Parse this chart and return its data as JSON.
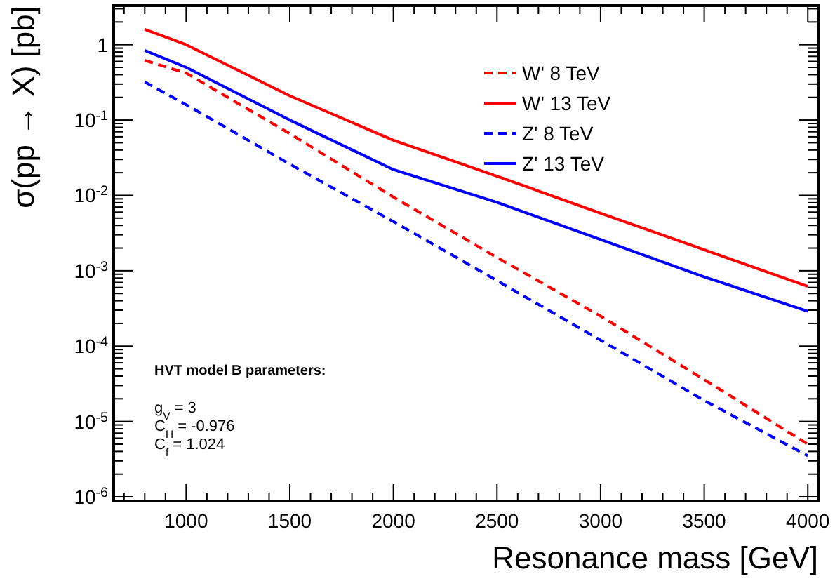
{
  "chart_data": {
    "type": "line",
    "xlabel": "Resonance mass [GeV]",
    "ylabel": "σ(pp → X) [pb]",
    "log": "y",
    "grid": false,
    "legend": "top right",
    "marker": "none",
    "xlim": [
      650,
      4050
    ],
    "ylim": [
      8.8e-07,
      3.3
    ],
    "xticks": [
      {
        "value": 700,
        "label": null
      },
      {
        "value": 800,
        "label": null
      },
      {
        "value": 900,
        "label": null
      },
      1000,
      {
        "value": 1100,
        "label": null
      },
      {
        "value": 1200,
        "label": null
      },
      {
        "value": 1300,
        "label": null
      },
      {
        "value": 1400,
        "label": null
      },
      1500,
      {
        "value": 1600,
        "label": null
      },
      {
        "value": 1700,
        "label": null
      },
      {
        "value": 1800,
        "label": null
      },
      {
        "value": 1900,
        "label": null
      },
      2000,
      {
        "value": 2100,
        "label": null
      },
      {
        "value": 2200,
        "label": null
      },
      {
        "value": 2300,
        "label": null
      },
      {
        "value": 2400,
        "label": null
      },
      2500,
      {
        "value": 2600,
        "label": null
      },
      {
        "value": 2700,
        "label": null
      },
      {
        "value": 2800,
        "label": null
      },
      {
        "value": 2900,
        "label": null
      },
      3000,
      {
        "value": 3100,
        "label": null
      },
      {
        "value": 3200,
        "label": null
      },
      {
        "value": 3300,
        "label": null
      },
      {
        "value": 3400,
        "label": null
      },
      3500,
      {
        "value": 3600,
        "label": null
      },
      {
        "value": 3700,
        "label": null
      },
      {
        "value": 3800,
        "label": null
      },
      {
        "value": 3900,
        "label": null
      },
      4000
    ],
    "yticks": [
      {
        "value": 1e-06,
        "label": "10$^{-6}$"
      },
      {
        "value": 2e-06,
        "label": null
      },
      {
        "value": 3e-06,
        "label": null
      },
      {
        "value": 4e-06,
        "label": null
      },
      {
        "value": 5e-06,
        "label": null
      },
      {
        "value": 6e-06,
        "label": null
      },
      {
        "value": 7e-06,
        "label": null
      },
      {
        "value": 8e-06,
        "label": null
      },
      {
        "value": 9e-06,
        "label": null
      },
      {
        "value": 1e-05,
        "label": "10$^{-5}$"
      },
      {
        "value": 2e-05,
        "label": null
      },
      {
        "value": 3e-05,
        "label": null
      },
      {
        "value": 4e-05,
        "label": null
      },
      {
        "value": 5e-05,
        "label": null
      },
      {
        "value": 6e-05,
        "label": null
      },
      {
        "value": 7e-05,
        "label": null
      },
      {
        "value": 8e-05,
        "label": null
      },
      {
        "value": 9e-05,
        "label": null
      },
      {
        "value": 0.0001,
        "label": "10$^{-4}$"
      },
      {
        "value": 0.0002,
        "label": null
      },
      {
        "value": 0.0003,
        "label": null
      },
      {
        "value": 0.0004,
        "label": null
      },
      {
        "value": 0.0005,
        "label": null
      },
      {
        "value": 0.0006,
        "label": null
      },
      {
        "value": 0.0007,
        "label": null
      },
      {
        "value": 0.0008,
        "label": null
      },
      {
        "value": 0.0009,
        "label": null
      },
      {
        "value": 0.001,
        "label": "10$^{-3}$"
      },
      {
        "value": 0.002,
        "label": null
      },
      {
        "value": 0.003,
        "label": null
      },
      {
        "value": 0.004,
        "label": null
      },
      {
        "value": 0.005,
        "label": null
      },
      {
        "value": 0.006,
        "label": null
      },
      {
        "value": 0.007,
        "label": null
      },
      {
        "value": 0.008,
        "label": null
      },
      {
        "value": 0.009,
        "label": null
      },
      {
        "value": 0.01,
        "label": "10$^{-2}$"
      },
      {
        "value": 0.02,
        "label": null
      },
      {
        "value": 0.03,
        "label": null
      },
      {
        "value": 0.04,
        "label": null
      },
      {
        "value": 0.05,
        "label": null
      },
      {
        "value": 0.06,
        "label": null
      },
      {
        "value": 0.07,
        "label": null
      },
      {
        "value": 0.08,
        "label": null
      },
      {
        "value": 0.09,
        "label": null
      },
      {
        "value": 0.1,
        "label": "10$^{-1}$"
      },
      {
        "value": 0.2,
        "label": null
      },
      {
        "value": 0.3,
        "label": null
      },
      {
        "value": 0.4,
        "label": null
      },
      {
        "value": 0.5,
        "label": null
      },
      {
        "value": 0.6,
        "label": null
      },
      {
        "value": 0.7,
        "label": null
      },
      {
        "value": 0.8,
        "label": null
      },
      {
        "value": 0.9,
        "label": null
      },
      1,
      {
        "value": 2,
        "label": null
      },
      {
        "value": 3,
        "label": null
      }
    ],
    "x": [
      800,
      1000,
      1500,
      2000,
      2500,
      3000,
      3500,
      4000
    ],
    "series": [
      {
        "name": "W' 8 TeV",
        "color": "#ff0000",
        "line_style": "dashed",
        "values": [
          0.62,
          0.42,
          0.066,
          0.0095,
          0.0015,
          0.00025,
          3.6e-05,
          5e-06
        ]
      },
      {
        "name": "W' 13 TeV",
        "color": "#ff0000",
        "line_style": "solid",
        "values": [
          1.6,
          1.0,
          0.21,
          0.054,
          0.018,
          0.0058,
          0.0019,
          0.00062
        ]
      },
      {
        "name": "Z' 8 TeV",
        "color": "#0000ff",
        "line_style": "dashed",
        "values": [
          0.32,
          0.16,
          0.026,
          0.0045,
          0.00074,
          0.00012,
          1.9e-05,
          3.5e-06
        ]
      },
      {
        "name": "Z' 13 TeV",
        "color": "#0000ff",
        "line_style": "solid",
        "values": [
          0.84,
          0.5,
          0.1,
          0.022,
          0.0081,
          0.0026,
          0.00083,
          0.00029
        ]
      }
    ],
    "annotations": [
      "HVT model B parameters:",
      "g$_{V}$ = 3",
      "C$_{H}$ = -0.976",
      "C$_{f}$ = 1.024"
    ]
  }
}
